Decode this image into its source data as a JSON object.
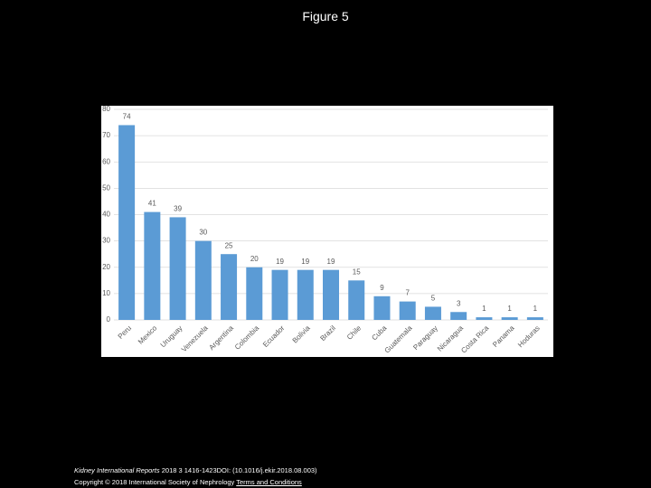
{
  "header": {
    "title": "Figure 5"
  },
  "chart_data": {
    "type": "bar",
    "categories": [
      "Peru",
      "Mexico",
      "Uruguay",
      "Venezuela",
      "Argentina",
      "Colombia",
      "Ecuador",
      "Bolivia",
      "Brazil",
      "Chile",
      "Cuba",
      "Guatemala",
      "Paraguay",
      "Nicaragua",
      "Costa Rica",
      "Panama",
      "Hoduras"
    ],
    "values": [
      74,
      41,
      39,
      30,
      25,
      20,
      19,
      19,
      19,
      15,
      9,
      7,
      5,
      3,
      1,
      1,
      1
    ],
    "color": "#5b9bd5",
    "ylim": [
      0,
      80
    ],
    "yticks": [
      0,
      10,
      20,
      30,
      40,
      50,
      60,
      70,
      80
    ],
    "grid": true
  },
  "footer": {
    "journal": "Kidney International Reports",
    "citation": "2018 3 1416-1423DOI: (10.1016/j.ekir.2018.08.003)",
    "copyright": "Copyright © 2018 International Society of Nephrology",
    "terms": "Terms and Conditions"
  }
}
